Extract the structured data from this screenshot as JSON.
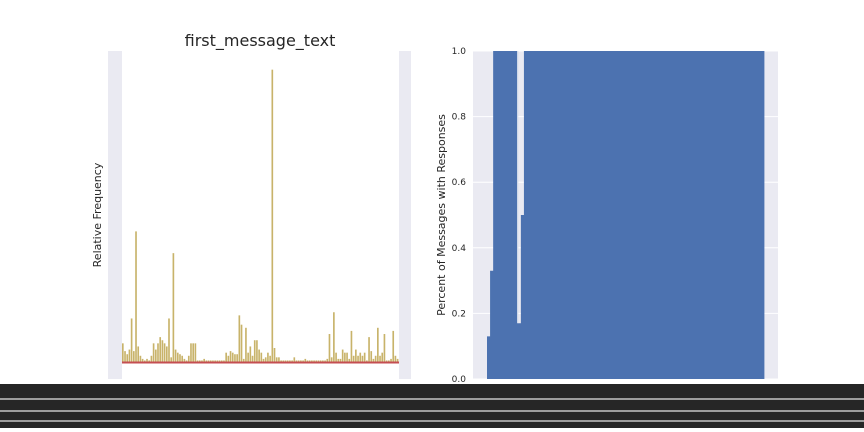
{
  "chart_data": [
    {
      "type": "bar",
      "title": "first_message_text",
      "xlabel": "",
      "ylabel": "Relative Frequency",
      "grid": true,
      "colors": {
        "background": "#EAEAF2",
        "bars": "#C8B36A",
        "baseline": "#C44E52"
      },
      "ylim": [
        0,
        1
      ],
      "values": [
        0.06,
        0.035,
        0.025,
        0.04,
        0.14,
        0.035,
        0.42,
        0.05,
        0.02,
        0.01,
        0.005,
        0.01,
        0.005,
        0.02,
        0.06,
        0.04,
        0.06,
        0.08,
        0.07,
        0.06,
        0.05,
        0.14,
        0.015,
        0.35,
        0.04,
        0.03,
        0.025,
        0.02,
        0.01,
        0.005,
        0.02,
        0.06,
        0.06,
        0.06,
        0.005,
        0.005,
        0.005,
        0.01,
        0.005,
        0.005,
        0.005,
        0.005,
        0.005,
        0.005,
        0.005,
        0.005,
        0.005,
        0.03,
        0.02,
        0.035,
        0.03,
        0.025,
        0.025,
        0.15,
        0.12,
        0.01,
        0.11,
        0.03,
        0.05,
        0.02,
        0.07,
        0.07,
        0.04,
        0.03,
        0.01,
        0.015,
        0.03,
        0.02,
        0.94,
        0.045,
        0.015,
        0.015,
        0.005,
        0.005,
        0.005,
        0.005,
        0.005,
        0.005,
        0.015,
        0.005,
        0.005,
        0.005,
        0.005,
        0.01,
        0.005,
        0.005,
        0.005,
        0.005,
        0.005,
        0.005,
        0.005,
        0.005,
        0.005,
        0.01,
        0.09,
        0.015,
        0.16,
        0.03,
        0.01,
        0.01,
        0.04,
        0.03,
        0.03,
        0.01,
        0.1,
        0.02,
        0.04,
        0.02,
        0.03,
        0.02,
        0.03,
        0.005,
        0.08,
        0.035,
        0.01,
        0.02,
        0.11,
        0.02,
        0.03,
        0.09,
        0.005,
        0.005,
        0.01,
        0.1,
        0.02,
        0.01
      ]
    },
    {
      "type": "bar",
      "title": "",
      "xlabel": "",
      "ylabel": "Percent of Messages with Responses",
      "grid": true,
      "colors": {
        "background": "#EAEAF2",
        "bars": "#4C72B0"
      },
      "ylim": [
        0,
        1
      ],
      "yticks": [
        "0.0",
        "0.2",
        "0.4",
        "0.6",
        "0.8",
        "1.0"
      ],
      "values_note_free": true,
      "values": [
        0.13,
        0.33,
        1.0,
        1.0,
        1.0,
        1.0,
        1.0,
        1.0,
        1.0,
        1.0,
        0.17,
        0.5,
        1.0,
        1.0,
        1.0,
        1.0,
        1.0,
        1.0,
        1.0,
        1.0,
        1.0,
        1.0,
        1.0,
        1.0,
        1.0,
        1.0,
        1.0,
        1.0,
        1.0,
        1.0,
        1.0,
        1.0,
        1.0,
        1.0,
        1.0,
        1.0,
        1.0,
        1.0,
        1.0,
        1.0,
        1.0,
        1.0,
        1.0,
        1.0,
        1.0,
        1.0,
        1.0,
        1.0,
        1.0,
        1.0,
        1.0,
        1.0,
        1.0,
        1.0,
        1.0,
        1.0,
        1.0,
        1.0,
        1.0,
        1.0,
        1.0,
        1.0,
        1.0,
        1.0,
        1.0,
        1.0,
        1.0,
        1.0,
        1.0,
        1.0,
        1.0,
        1.0,
        1.0,
        1.0,
        1.0,
        1.0,
        1.0,
        1.0,
        1.0,
        1.0,
        1.0,
        1.0,
        1.0,
        1.0,
        1.0,
        1.0,
        1.0,
        1.0,
        1.0,
        1.0
      ]
    }
  ]
}
